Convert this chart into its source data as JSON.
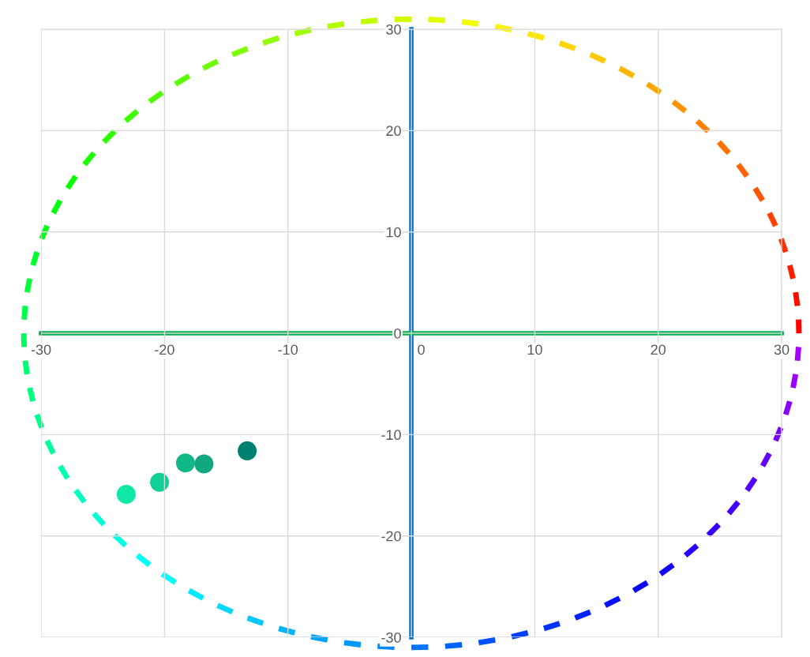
{
  "chart_data": {
    "type": "scatter",
    "x": [
      -23.1,
      -20.4,
      -18.3,
      -16.8,
      -13.3
    ],
    "values": [
      -15.9,
      -14.7,
      -12.8,
      -12.9,
      -11.6
    ],
    "colors": [
      "#10e8a8",
      "#10d098",
      "#10b888",
      "#10a880",
      "#008070"
    ],
    "xlim": [
      -30,
      30
    ],
    "ylim": [
      -30,
      30
    ],
    "xticks": [
      -30,
      -20,
      -10,
      0,
      10,
      20,
      30
    ],
    "yticks": [
      -30,
      -20,
      -10,
      0,
      10,
      20,
      30
    ],
    "grid": true,
    "marker": "circle"
  }
}
